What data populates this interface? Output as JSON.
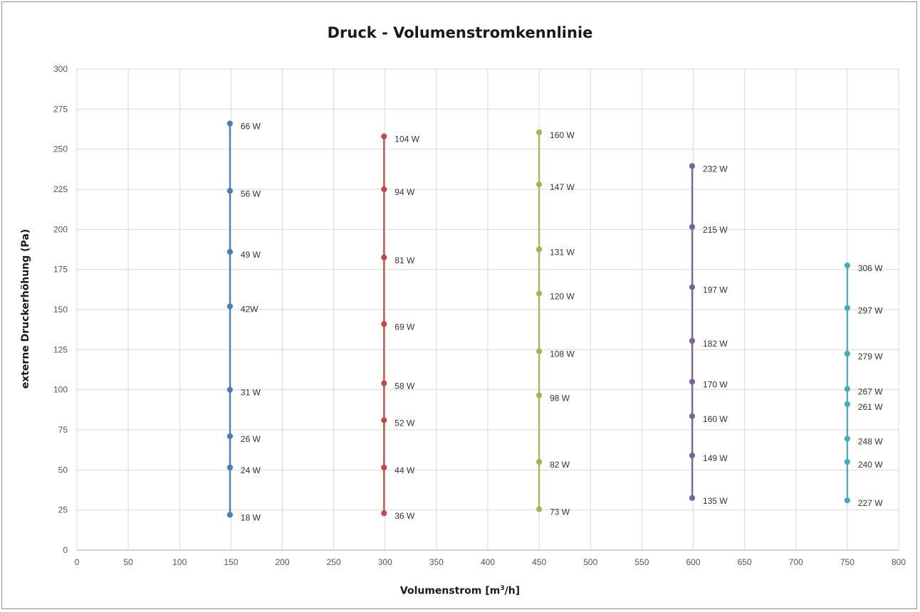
{
  "chart_data": {
    "type": "line",
    "title": "Druck - Volumenstromkennlinie",
    "xlabel_text": "Volumenstrom [m",
    "xlabel_sup": "3",
    "xlabel_end": "/h]",
    "ylabel": "externe Druckerhöhung (Pa)",
    "xlim": [
      0,
      800
    ],
    "ylim": [
      0,
      300
    ],
    "x_ticks": [
      0,
      50,
      100,
      150,
      200,
      250,
      300,
      350,
      400,
      450,
      500,
      550,
      600,
      650,
      700,
      750,
      800
    ],
    "y_ticks": [
      0,
      25,
      50,
      75,
      100,
      125,
      150,
      175,
      200,
      225,
      250,
      275,
      300
    ],
    "grid": true,
    "series": [
      {
        "color": "#4a7ebb",
        "points": [
          {
            "x": 149,
            "y": 266,
            "label": "66 W"
          },
          {
            "x": 149,
            "y": 224,
            "label": "56 W"
          },
          {
            "x": 149,
            "y": 186,
            "label": "49 W"
          },
          {
            "x": 149,
            "y": 152,
            "label": "42W"
          },
          {
            "x": 149,
            "y": 100,
            "label": "31 W"
          },
          {
            "x": 149,
            "y": 71,
            "label": "26 W"
          },
          {
            "x": 149,
            "y": 51.5,
            "label": "24 W"
          },
          {
            "x": 149,
            "y": 22,
            "label": "18 W"
          }
        ]
      },
      {
        "color": "#be4b48",
        "points": [
          {
            "x": 299,
            "y": 258,
            "label": "104 W"
          },
          {
            "x": 299,
            "y": 225,
            "label": "94 W"
          },
          {
            "x": 299,
            "y": 182.5,
            "label": "81 W"
          },
          {
            "x": 299,
            "y": 141,
            "label": "69 W"
          },
          {
            "x": 299,
            "y": 104,
            "label": "58 W"
          },
          {
            "x": 299,
            "y": 81,
            "label": "52 W"
          },
          {
            "x": 299,
            "y": 51.5,
            "label": "44 W"
          },
          {
            "x": 299,
            "y": 23,
            "label": "36 W"
          }
        ]
      },
      {
        "color": "#98b954",
        "points": [
          {
            "x": 450,
            "y": 260.5,
            "label": "160 W"
          },
          {
            "x": 450,
            "y": 228,
            "label": "147 W"
          },
          {
            "x": 450,
            "y": 187.5,
            "label": "131 W"
          },
          {
            "x": 450,
            "y": 160,
            "label": "120 W"
          },
          {
            "x": 450,
            "y": 124,
            "label": "108 W"
          },
          {
            "x": 450,
            "y": 96.5,
            "label": "98 W"
          },
          {
            "x": 450,
            "y": 55,
            "label": "82 W"
          },
          {
            "x": 450,
            "y": 25.5,
            "label": "73 W"
          }
        ]
      },
      {
        "color": "#7d60a0",
        "points": [
          {
            "x": 599,
            "y": 239.5,
            "label": "232 W"
          },
          {
            "x": 599,
            "y": 201.5,
            "label": "215 W"
          },
          {
            "x": 599,
            "y": 164,
            "label": "197 W"
          },
          {
            "x": 599,
            "y": 130.5,
            "label": "182 W"
          },
          {
            "x": 599,
            "y": 105,
            "label": "170 W"
          },
          {
            "x": 599,
            "y": 83.5,
            "label": "160 W"
          },
          {
            "x": 599,
            "y": 59,
            "label": "149 W"
          },
          {
            "x": 599,
            "y": 32.5,
            "label": "135 W"
          }
        ]
      },
      {
        "color": "#46aac5",
        "points": [
          {
            "x": 750,
            "y": 177.5,
            "label": "306 W"
          },
          {
            "x": 750,
            "y": 151,
            "label": "297 W"
          },
          {
            "x": 750,
            "y": 122.5,
            "label": "279 W"
          },
          {
            "x": 750,
            "y": 100.5,
            "label": "267 W"
          },
          {
            "x": 750,
            "y": 91,
            "label": "261 W"
          },
          {
            "x": 750,
            "y": 69.5,
            "label": "248 W"
          },
          {
            "x": 750,
            "y": 55,
            "label": "240 W"
          },
          {
            "x": 750,
            "y": 31,
            "label": "227 W"
          }
        ]
      }
    ]
  }
}
